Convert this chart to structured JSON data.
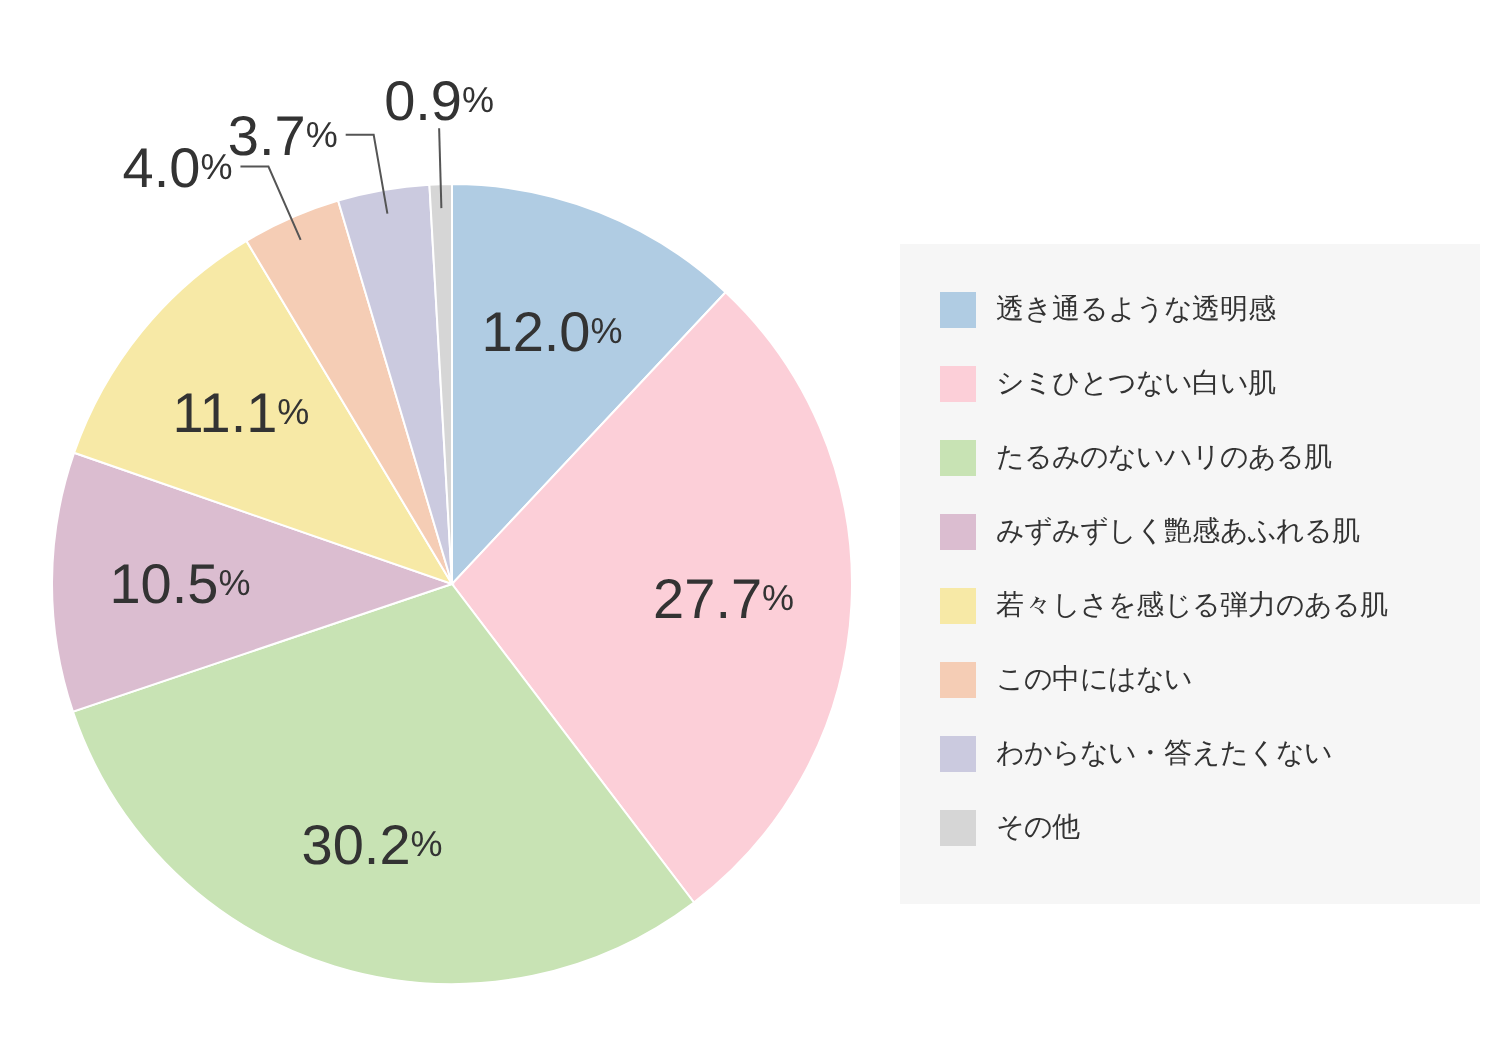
{
  "chart_data": {
    "type": "pie",
    "categories": [
      "透き通るような透明感",
      "シミひとつない白い肌",
      "たるみのないハリのある肌",
      "みずみずしく艶感あふれる肌",
      "若々しさを感じる弾力のある肌",
      "この中にはない",
      "わからない・答えたくない",
      "その他"
    ],
    "values": [
      12.0,
      27.7,
      30.2,
      10.5,
      11.1,
      4.0,
      3.7,
      0.9
    ],
    "value_labels": [
      "12.0%",
      "27.7%",
      "30.2%",
      "10.5%",
      "11.1%",
      "4.0%",
      "3.7%",
      "0.9%"
    ],
    "colors": [
      "#b0cce3",
      "#fccfd8",
      "#c8e3b4",
      "#dbbdd0",
      "#f7e9a6",
      "#f5cdb5",
      "#cbcadf",
      "#d6d6d6"
    ],
    "legend": "right"
  }
}
